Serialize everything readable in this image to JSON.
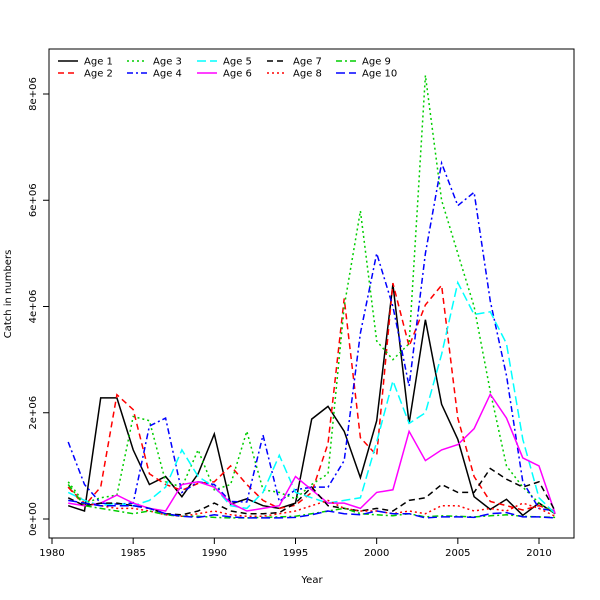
{
  "chart_data": {
    "type": "line",
    "title": "",
    "xlabel": "Year",
    "ylabel": "Catch in numbers",
    "xlim": [
      1980,
      2012
    ],
    "ylim": [
      -300000,
      8700000
    ],
    "x_ticks": [
      1980,
      1985,
      1990,
      1995,
      2000,
      2005,
      2010
    ],
    "x_tick_labels": [
      "1980",
      "1985",
      "1990",
      "1995",
      "2000",
      "2005",
      "2010"
    ],
    "y_ticks": [
      0,
      2000000,
      4000000,
      6000000,
      8000000
    ],
    "y_tick_labels": [
      "0e+00",
      "2e+06",
      "4e+06",
      "6e+06",
      "8e+06"
    ],
    "grid": false,
    "legend_position": "top-left",
    "x": [
      1981,
      1982,
      1983,
      1984,
      1985,
      1986,
      1987,
      1988,
      1989,
      1990,
      1991,
      1992,
      1993,
      1994,
      1995,
      1996,
      1997,
      1998,
      1999,
      2000,
      2001,
      2002,
      2003,
      2004,
      2005,
      2006,
      2007,
      2008,
      2009,
      2010,
      2011
    ],
    "series": [
      {
        "name": "Age 1",
        "color": "#000000",
        "dash": "solid",
        "values": [
          250000,
          150000,
          2280000,
          2280000,
          1300000,
          650000,
          800000,
          420000,
          850000,
          1600000,
          280000,
          380000,
          250000,
          200000,
          300000,
          1880000,
          2120000,
          1650000,
          780000,
          1850000,
          4420000,
          1800000,
          3750000,
          2160000,
          1500000,
          420000,
          180000,
          370000,
          70000,
          300000,
          100000
        ]
      },
      {
        "name": "Age 2",
        "color": "#ff0000",
        "dash": "dashed",
        "values": [
          600000,
          250000,
          600000,
          2340000,
          2060000,
          850000,
          650000,
          540000,
          670000,
          700000,
          1000000,
          650000,
          350000,
          200000,
          260000,
          500000,
          1420000,
          4150000,
          1530000,
          1200000,
          4440000,
          3250000,
          4030000,
          4400000,
          1900000,
          800000,
          330000,
          250000,
          170000,
          250000,
          150000
        ]
      },
      {
        "name": "Age 3",
        "color": "#00cd00",
        "dash": "dotted",
        "values": [
          700000,
          300000,
          400000,
          450000,
          1930000,
          1850000,
          700000,
          600000,
          1300000,
          550000,
          650000,
          1650000,
          550000,
          500000,
          380000,
          650000,
          850000,
          4000000,
          5800000,
          3350000,
          3000000,
          3300000,
          8350000,
          6000000,
          5000000,
          4000000,
          2400000,
          1000000,
          600000,
          300000,
          100000
        ]
      },
      {
        "name": "Age 4",
        "color": "#0000ff",
        "dash": "dashdot",
        "values": [
          1450000,
          650000,
          300000,
          280000,
          300000,
          1750000,
          1900000,
          500000,
          700000,
          650000,
          330000,
          320000,
          1580000,
          330000,
          550000,
          600000,
          600000,
          1100000,
          3500000,
          5000000,
          4000000,
          2500000,
          5000000,
          6700000,
          5900000,
          6150000,
          4100000,
          2700000,
          700000,
          200000,
          150000
        ]
      },
      {
        "name": "Age 5",
        "color": "#00ffff",
        "dash": "longdash",
        "values": [
          500000,
          350000,
          250000,
          300000,
          250000,
          350000,
          600000,
          1300000,
          800000,
          600000,
          250000,
          200000,
          500000,
          1200000,
          500000,
          400000,
          300000,
          350000,
          400000,
          1450000,
          2600000,
          1800000,
          2000000,
          3100000,
          4450000,
          3850000,
          3900000,
          3300000,
          1500000,
          400000,
          100000
        ]
      },
      {
        "name": "Age 6",
        "color": "#ff00ff",
        "dash": "solid",
        "values": [
          300000,
          250000,
          300000,
          450000,
          300000,
          200000,
          150000,
          650000,
          700000,
          600000,
          300000,
          150000,
          200000,
          250000,
          800000,
          550000,
          300000,
          300000,
          200000,
          500000,
          550000,
          1650000,
          1100000,
          1300000,
          1400000,
          1700000,
          2350000,
          1900000,
          1150000,
          1000000,
          100000
        ]
      },
      {
        "name": "Age 7",
        "color": "#000000",
        "dash": "dashed",
        "values": [
          400000,
          250000,
          300000,
          300000,
          250000,
          200000,
          100000,
          80000,
          150000,
          300000,
          150000,
          100000,
          100000,
          120000,
          300000,
          600000,
          250000,
          200000,
          150000,
          200000,
          150000,
          350000,
          400000,
          650000,
          500000,
          500000,
          950000,
          750000,
          600000,
          700000,
          150000
        ]
      },
      {
        "name": "Age 8",
        "color": "#ff0000",
        "dash": "dotted",
        "values": [
          600000,
          300000,
          250000,
          200000,
          200000,
          150000,
          80000,
          50000,
          100000,
          150000,
          80000,
          50000,
          50000,
          100000,
          150000,
          250000,
          350000,
          200000,
          150000,
          150000,
          100000,
          150000,
          100000,
          250000,
          250000,
          150000,
          200000,
          150000,
          300000,
          200000,
          50000
        ]
      },
      {
        "name": "Age 9",
        "color": "#00cd00",
        "dash": "dashdot",
        "values": [
          650000,
          250000,
          200000,
          150000,
          100000,
          150000,
          80000,
          50000,
          50000,
          30000,
          20000,
          20000,
          30000,
          40000,
          50000,
          100000,
          150000,
          200000,
          100000,
          80000,
          60000,
          100000,
          40000,
          60000,
          50000,
          40000,
          60000,
          80000,
          50000,
          40000,
          30000
        ]
      },
      {
        "name": "Age 10",
        "color": "#0000ff",
        "dash": "longdash",
        "values": [
          350000,
          300000,
          250000,
          250000,
          250000,
          200000,
          100000,
          50000,
          30000,
          80000,
          40000,
          20000,
          20000,
          20000,
          30000,
          80000,
          150000,
          100000,
          80000,
          150000,
          100000,
          100000,
          20000,
          40000,
          40000,
          30000,
          100000,
          120000,
          40000,
          40000,
          20000
        ]
      }
    ]
  }
}
